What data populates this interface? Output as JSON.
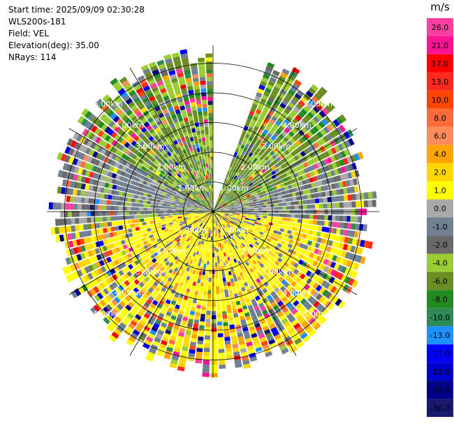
{
  "header": {
    "start_time": "Start time: 2025/09/09 02:30:28",
    "instrument": "WLS200s-181",
    "field": "Field: VEL",
    "elevation": "Elevation(deg): 35.00",
    "nrays": "NRays: 114"
  },
  "chart_data": {
    "type": "ppi-scan",
    "field": "VEL",
    "elevation_deg": 35.0,
    "n_rays": 114,
    "range_rings_km": [
      "1.00km",
      "2.00km",
      "3.00km",
      "4.00km",
      "5.00km"
    ],
    "max_range_km": 5.6,
    "missing_sector_deg": [
      0,
      20
    ],
    "colorbar": {
      "unit": "m/s",
      "labels": [
        "26.0",
        "21.0",
        "17.0",
        "13.0",
        "10.0",
        "8.0",
        "6.0",
        "4.0",
        "2.0",
        "1.0",
        "0.0",
        "-1.0",
        "-2.0",
        "-4.0",
        "-6.0",
        "-8.0",
        "-10.0",
        "-13.0",
        "-17.0",
        "-21.0",
        "-26.0",
        "-30.0"
      ],
      "colors": [
        "#ff3fa0",
        "#ff1493",
        "#ff0000",
        "#ff2a1f",
        "#ff4500",
        "#ff6b3a",
        "#ff8c5a",
        "#ffa500",
        "#ffd700",
        "#ffff00",
        "#a9a9a9",
        "#708090",
        "#696969",
        "#9acd32",
        "#6b8e23",
        "#228b22",
        "#2e8b57",
        "#1e90ff",
        "#0000ff",
        "#0000cd",
        "#00008b",
        "#191970"
      ]
    }
  }
}
